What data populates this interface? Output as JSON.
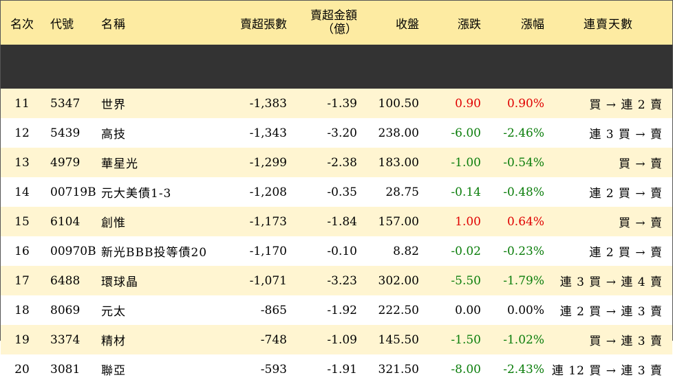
{
  "headers": {
    "rank": "名次",
    "code": "代號",
    "name": "名稱",
    "net_sell_lots": "賣超張數",
    "net_sell_amount_line1": "賣超金額",
    "net_sell_amount_line2": "（億）",
    "close": "收盤",
    "change": "漲跌",
    "change_pct": "漲幅",
    "streak": "連賣天數"
  },
  "colors": {
    "header_bg": "#fdeba2",
    "stripe_bg": "#fff5d1",
    "up": "#e00000",
    "down": "#0a7d0a"
  },
  "rows": [
    {
      "rank": "11",
      "code": "5347",
      "name": "世界",
      "net_sell_lots": "-1,383",
      "net_sell_amount": "-1.39",
      "close": "100.50",
      "change": "0.90",
      "change_pct": "0.90%",
      "trend": "up",
      "streak": "買 → 連 2 賣"
    },
    {
      "rank": "12",
      "code": "5439",
      "name": "高技",
      "net_sell_lots": "-1,343",
      "net_sell_amount": "-3.20",
      "close": "238.00",
      "change": "-6.00",
      "change_pct": "-2.46%",
      "trend": "down",
      "streak": "連 3 買 → 賣"
    },
    {
      "rank": "13",
      "code": "4979",
      "name": "華星光",
      "net_sell_lots": "-1,299",
      "net_sell_amount": "-2.38",
      "close": "183.00",
      "change": "-1.00",
      "change_pct": "-0.54%",
      "trend": "down",
      "streak": "買 → 賣"
    },
    {
      "rank": "14",
      "code": "00719B",
      "name": "元大美債1-3",
      "net_sell_lots": "-1,208",
      "net_sell_amount": "-0.35",
      "close": "28.75",
      "change": "-0.14",
      "change_pct": "-0.48%",
      "trend": "down",
      "streak": "連 2 買 → 賣"
    },
    {
      "rank": "15",
      "code": "6104",
      "name": "創惟",
      "net_sell_lots": "-1,173",
      "net_sell_amount": "-1.84",
      "close": "157.00",
      "change": "1.00",
      "change_pct": "0.64%",
      "trend": "up",
      "streak": "買 → 賣"
    },
    {
      "rank": "16",
      "code": "00970B",
      "name": "新光BBB投等債20",
      "net_sell_lots": "-1,170",
      "net_sell_amount": "-0.10",
      "close": "8.82",
      "change": "-0.02",
      "change_pct": "-0.23%",
      "trend": "down",
      "streak": "連 2 買 → 賣"
    },
    {
      "rank": "17",
      "code": "6488",
      "name": "環球晶",
      "net_sell_lots": "-1,071",
      "net_sell_amount": "-3.23",
      "close": "302.00",
      "change": "-5.50",
      "change_pct": "-1.79%",
      "trend": "down",
      "streak": "連 3 買 → 連 4 賣"
    },
    {
      "rank": "18",
      "code": "8069",
      "name": "元太",
      "net_sell_lots": "-865",
      "net_sell_amount": "-1.92",
      "close": "222.50",
      "change": "0.00",
      "change_pct": "0.00%",
      "trend": "flat",
      "streak": "連 2 買 → 連 3 賣"
    },
    {
      "rank": "19",
      "code": "3374",
      "name": "精材",
      "net_sell_lots": "-748",
      "net_sell_amount": "-1.09",
      "close": "145.50",
      "change": "-1.50",
      "change_pct": "-1.02%",
      "trend": "down",
      "streak": "買 → 連 3 賣"
    },
    {
      "rank": "20",
      "code": "3081",
      "name": "聯亞",
      "net_sell_lots": "-593",
      "net_sell_amount": "-1.91",
      "close": "321.50",
      "change": "-8.00",
      "change_pct": "-2.43%",
      "trend": "down",
      "streak": "連 12 買 → 連 3 賣"
    }
  ]
}
